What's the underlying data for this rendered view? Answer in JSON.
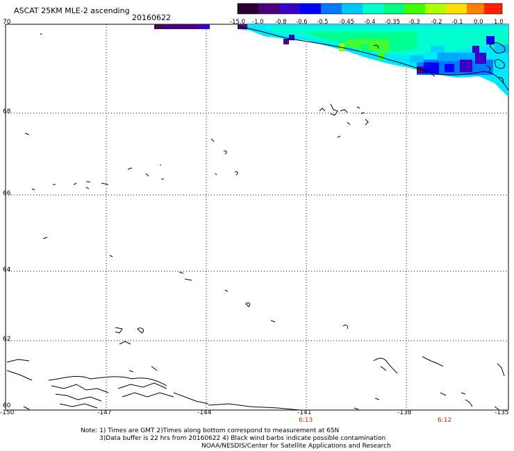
{
  "header": {
    "title": "ASCAT 25KM MLE-2 ascending",
    "date": "20160622"
  },
  "colorbar": {
    "labels": [
      "-15.0",
      "-1.0",
      "-0.8",
      "-0.6",
      "-0.5",
      "-0.45",
      "-0.4",
      "-0.35",
      "-0.3",
      "-0.2",
      "-0.1",
      "0.0",
      "1.0"
    ],
    "colors": [
      "#2a0030",
      "#4b0082",
      "#3a00c8",
      "#0000ff",
      "#0078ff",
      "#00c8ff",
      "#00ffd0",
      "#00ff80",
      "#40ff00",
      "#b0ff00",
      "#ffe000",
      "#ff8000",
      "#ff2000"
    ]
  },
  "map": {
    "lat_labels": [
      "70",
      "68",
      "66",
      "64",
      "62",
      "60"
    ],
    "lon_labels": [
      "-150",
      "-147",
      "-144",
      "-141",
      "-138",
      "-135"
    ],
    "time_labels": [
      "6:13",
      "6:12"
    ]
  },
  "notes": {
    "line1": "Note: 1) Times are GMT 2)Times along bottom correspond to measurement at 65N",
    "line2": "3)Data buffer is 22 hrs from 20160622 4) Black wind barbs indicate possible contamination",
    "line3": "NOAA/NESDIS/Center for Satellite Applications and Research"
  }
}
